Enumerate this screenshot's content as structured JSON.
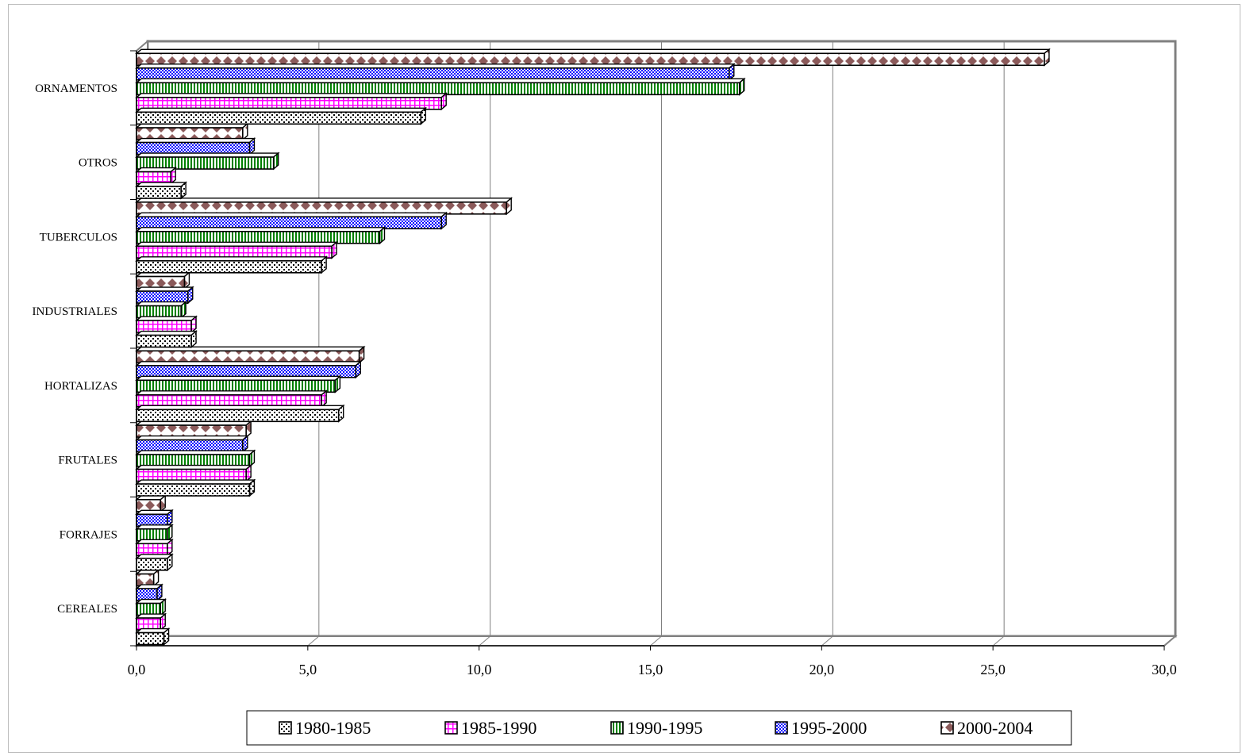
{
  "chart_data": {
    "type": "bar",
    "orientation": "horizontal",
    "title": "",
    "xlabel": "",
    "ylabel": "",
    "xlim": [
      0,
      30
    ],
    "x_ticks": [
      "0,0",
      "5,0",
      "10,0",
      "15,0",
      "20,0",
      "25,0",
      "30,0"
    ],
    "grid": true,
    "legend_position": "bottom",
    "categories": [
      "CEREALES",
      "FORRAJES",
      "FRUTALES",
      "HORTALIZAS",
      "INDUSTRIALES",
      "TUBERCULOS",
      "OTROS",
      "ORNAMENTOS"
    ],
    "series": [
      {
        "name": "1980-1985",
        "color": "#000000",
        "pattern": "dots",
        "values": [
          0.8,
          0.9,
          3.3,
          5.9,
          1.6,
          5.4,
          1.3,
          8.3
        ]
      },
      {
        "name": "1985-1990",
        "color": "#ff00ff",
        "pattern": "grid",
        "values": [
          0.7,
          0.9,
          3.2,
          5.4,
          1.6,
          5.7,
          1.0,
          8.9
        ]
      },
      {
        "name": "1990-1995",
        "color": "#008000",
        "pattern": "vertical",
        "values": [
          0.7,
          0.9,
          3.3,
          5.8,
          1.3,
          7.1,
          4.0,
          17.6
        ]
      },
      {
        "name": "1995-2000",
        "color": "#0000ff",
        "pattern": "checker",
        "values": [
          0.6,
          0.9,
          3.1,
          6.4,
          1.5,
          8.9,
          3.3,
          17.3
        ]
      },
      {
        "name": "2000-2004",
        "color": "#8b5a5a",
        "pattern": "diamonds",
        "values": [
          0.5,
          0.7,
          3.2,
          6.5,
          1.4,
          10.8,
          3.1,
          26.5
        ]
      }
    ]
  }
}
